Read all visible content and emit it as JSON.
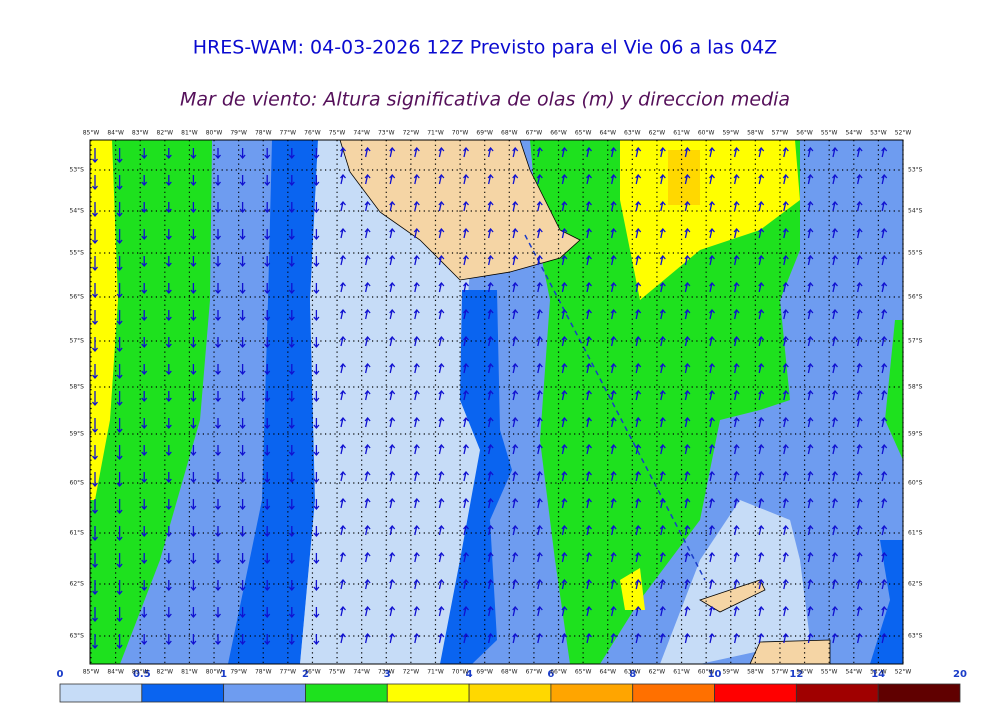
{
  "header": {
    "title": "HRES-WAM: 04-03-2026 12Z Previsto para el Vie 06 a las 04Z",
    "subtitle": "Mar de viento: Altura significativa de olas (m) y direccion media"
  },
  "map": {
    "lon_labels": [
      "85°W",
      "84°W",
      "83°W",
      "82°W",
      "81°W",
      "80°W",
      "79°W",
      "78°W",
      "77°W",
      "76°W",
      "75°W",
      "74°W",
      "73°W",
      "72°W",
      "71°W",
      "70°W",
      "69°W",
      "68°W",
      "67°W",
      "66°W",
      "65°W",
      "64°W",
      "63°W",
      "62°W",
      "61°W",
      "60°W",
      "59°W",
      "58°W",
      "57°W",
      "56°W",
      "55°W",
      "54°W",
      "53°W",
      "52°W"
    ],
    "lat_labels": [
      "53°S",
      "54°S",
      "55°S",
      "56°S",
      "57°S",
      "58°S",
      "59°S",
      "60°S",
      "61°S",
      "62°S",
      "63°S"
    ]
  },
  "colorbar": {
    "levels": [
      0,
      0.5,
      1,
      2,
      3,
      4,
      6,
      8,
      10,
      12,
      14,
      20
    ],
    "colors": [
      "#c6dcf7",
      "#0a64f0",
      "#6e9cf0",
      "#1ee11e",
      "#ffff00",
      "#ffd800",
      "#ffa500",
      "#ff7000",
      "#ff0000",
      "#a00000",
      "#600000",
      "#303030"
    ]
  }
}
